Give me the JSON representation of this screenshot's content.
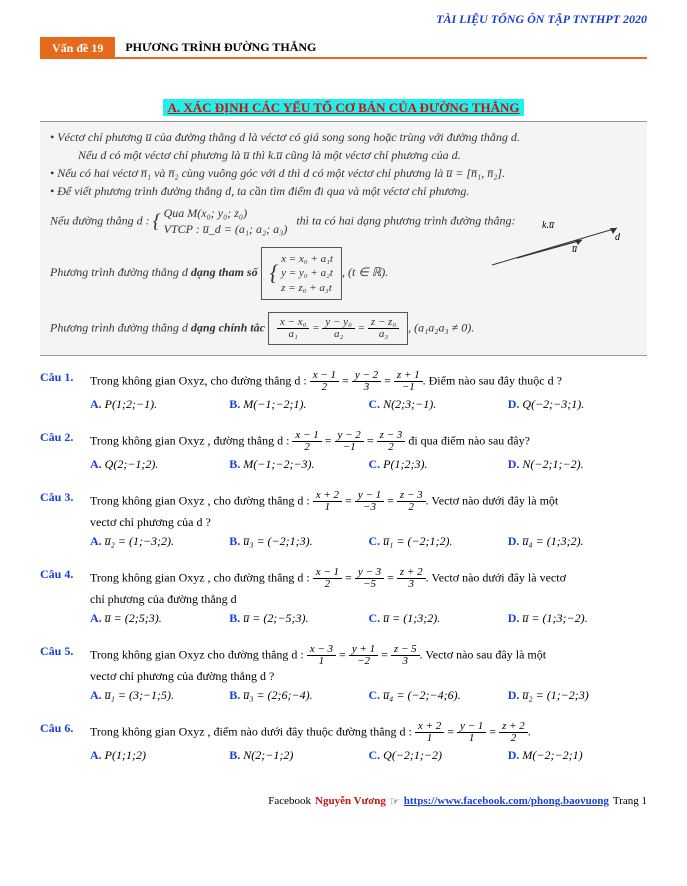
{
  "header": {
    "title": "TÀI LIỆU TỔNG ÔN TẬP TNTHPT 2020"
  },
  "topic": {
    "badge": "Vấn đề 19",
    "title": "PHƯƠNG TRÌNH ĐƯỜNG THẲNG"
  },
  "sectionA": {
    "title": "A. XÁC ĐỊNH CÁC YẾU TỐ CƠ BẢN CỦA ĐƯỜNG THẲNG"
  },
  "theory": {
    "b1a": "• Véctơ chỉ phương u̅ của đường thẳng d là véctơ có giá song song hoặc trùng với đường thẳng d.",
    "b1b": "Nếu d có một véctơ chỉ phương là u̅ thì k.u̅ cũng là một véctơ chỉ phương của d.",
    "b2": "• Nếu có hai véctơ n̅₁ và n̅₂ cùng vuông góc với d thì d có một véctơ chỉ phương là u̅ = [n̅₁, n̅₂].",
    "b3": "• Để viết phương trình đường thẳng d, ta cần tìm điểm đi qua và một véctơ chỉ phương.",
    "cond_label": "Nếu đường thẳng d :",
    "cond1": "Qua M(x₀; y₀; z₀)",
    "cond2": "VTCP : u̅_d = (a₁; a₂; a₃)",
    "cond_tail": "thì ta có hai dạng phương trình đường thẳng:",
    "param_label": "Phương trình đường thẳng d ",
    "param_bold": "dạng tham số",
    "param_eq1": "x = x₀ + a₁t",
    "param_eq2": "y = y₀ + a₂t",
    "param_eq3": "z = z₀ + a₃t",
    "param_tail": ", (t ∈ ℝ).",
    "canon_label": "Phương trình đường thẳng d ",
    "canon_bold": "dạng chính tắc",
    "canon_tail": ", (a₁a₂a₃ ≠ 0).",
    "diagram_ku": "k.u̅",
    "diagram_d": "d",
    "diagram_u": "u̅"
  },
  "questions": [
    {
      "label": "Câu 1.",
      "pre": "Trong không gian Oxyz, cho đường thẳng d :",
      "frac": [
        [
          "x − 1",
          "2"
        ],
        [
          "y − 2",
          "3"
        ],
        [
          "z + 1",
          "−1"
        ]
      ],
      "post": ". Điểm nào sau đây thuộc d ?",
      "opts": [
        "P(1;2;−1).",
        "M(−1;−2;1).",
        "N(2;3;−1).",
        "Q(−2;−3;1)."
      ]
    },
    {
      "label": "Câu 2.",
      "pre": "Trong không gian Oxyz , đường thẳng d :",
      "frac": [
        [
          "x − 1",
          "2"
        ],
        [
          "y − 2",
          "−1"
        ],
        [
          "z − 3",
          "2"
        ]
      ],
      "post": " đi qua điểm nào sau đây?",
      "opts": [
        "Q(2;−1;2).",
        "M(−1;−2;−3).",
        "P(1;2;3).",
        "N(−2;1;−2)."
      ]
    },
    {
      "label": "Câu 3.",
      "pre": "Trong không gian Oxyz , cho đường thẳng d :",
      "frac": [
        [
          "x + 2",
          "1"
        ],
        [
          "y − 1",
          "−3"
        ],
        [
          "z − 3",
          "2"
        ]
      ],
      "post": ". Vectơ nào dưới đây là một",
      "line2": "vectơ chỉ phương của d ?",
      "opts": [
        "u̅₂ = (1;−3;2).",
        "u̅₃ = (−2;1;3).",
        "u̅₁ = (−2;1;2).",
        "u̅₄ = (1;3;2)."
      ]
    },
    {
      "label": "Câu 4.",
      "pre": "Trong không gian Oxyz , cho đường thẳng d :",
      "frac": [
        [
          "x − 1",
          "2"
        ],
        [
          "y − 3",
          "−5"
        ],
        [
          "z + 2",
          "3"
        ]
      ],
      "post": ". Vectơ nào dưới đây là vectơ",
      "line2": "chỉ phương của đường thẳng d",
      "opts": [
        "u̅ = (2;5;3).",
        "u̅ = (2;−5;3).",
        "u̅ = (1;3;2).",
        "u̅ = (1;3;−2)."
      ]
    },
    {
      "label": "Câu 5.",
      "pre": "Trong không gian Oxyz cho đường thẳng d :",
      "frac": [
        [
          "x − 3",
          "1"
        ],
        [
          "y + 1",
          "−2"
        ],
        [
          "z − 5",
          "3"
        ]
      ],
      "post": ". Vectơ nào sau đây là một",
      "line2": "vectơ chỉ phương của đường thẳng d ?",
      "opts": [
        "u̅₁ = (3;−1;5).",
        "u̅₃ = (2;6;−4).",
        "u̅₄ = (−2;−4;6).",
        "u̅₂ = (1;−2;3)"
      ]
    },
    {
      "label": "Câu 6.",
      "pre": "Trong không gian Oxyz , điểm nào dưới đây thuộc đường thẳng d :",
      "frac": [
        [
          "x + 2",
          "1"
        ],
        [
          "y − 1",
          "1"
        ],
        [
          "z + 2",
          "2"
        ]
      ],
      "post": ".",
      "opts": [
        "P(1;1;2)",
        "N(2;−1;2)",
        "Q(−2;1;−2)",
        "M(−2;−2;1)"
      ]
    }
  ],
  "footer": {
    "fb": "Facebook",
    "name": "Nguyễn Vương",
    "arrow": "☞",
    "link": "https://www.facebook.com/phong.baovuong",
    "page": "Trang 1"
  },
  "colors": {
    "blue": "#1a3fd6",
    "orange": "#e56a1b",
    "red": "#c01515",
    "cyan": "#23eee9",
    "grayBox": "#f4f4f4"
  }
}
